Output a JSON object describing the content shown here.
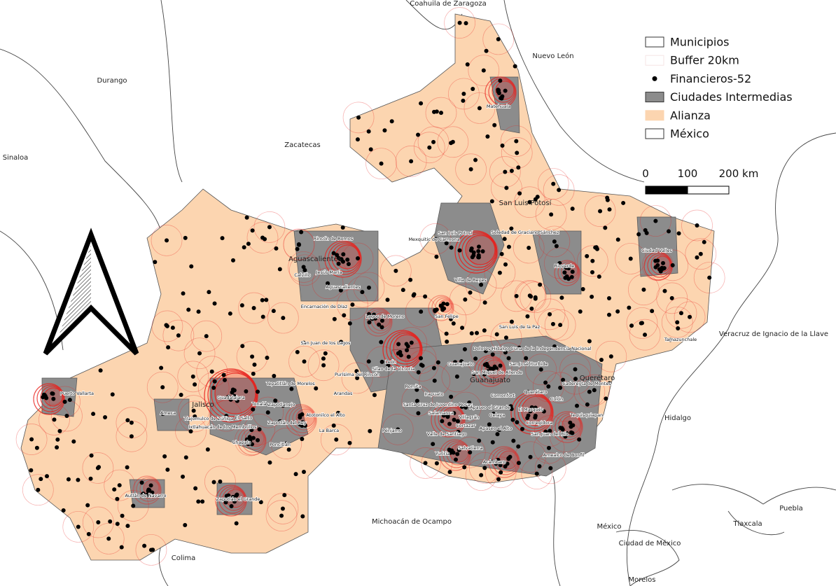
{
  "legend": [
    {
      "label": "Municipios"
    },
    {
      "label": "Buffer 20km"
    },
    {
      "label": "Financieros-52"
    },
    {
      "label": "Ciudades Intermedias"
    },
    {
      "label": "Alianza"
    },
    {
      "label": "México"
    }
  ],
  "scale_bar": {
    "labels": [
      "0",
      "100",
      "200 km"
    ]
  },
  "state_labels": [
    "Coahuila de Zaragoza",
    "Nuevo León",
    "Durango",
    "Zacatecas",
    "Sinaloa",
    "San Luis Potosí",
    "Aguascalientes",
    "Jalisco",
    "Guanajuato",
    "Querétaro",
    "Veracruz de Ignacio de la Llave",
    "Hidalgo",
    "Michoacán de Ocampo",
    "México",
    "Ciudad de México",
    "Puebla",
    "Tlaxcala",
    "Colima",
    "Morelos"
  ],
  "city_labels": [
    "Matehuala",
    "Ciudad Valles",
    "San Luis Potosí",
    "Soledad de Graciano Sánchez",
    "Mexquitic de Carmona",
    "Rioverde",
    "Villa de Reyes",
    "Rincón de Romos",
    "Calvillo",
    "Jesús María",
    "Aguascalientes",
    "Encarnación de Díaz",
    "Lagos de Moreno",
    "San Felipe",
    "San Luis de la Paz",
    "Tamazunchale",
    "San Juan de los Lagos",
    "Dolores Hidalgo Cuna de la Independencia Nacional",
    "León",
    "Silao de la Victoria",
    "Guanajuato",
    "San José Iturbide",
    "Tepatitlán de Morelos",
    "Purísima del Rincón",
    "Romita",
    "San Miguel de Allende",
    "Cadereyta de Montes",
    "Guadalajara",
    "Tonalá",
    "Zapotlanejo",
    "Puerto Vallarta",
    "Ameca",
    "Tlajomulco de Zúñiga",
    "El Salto",
    "Ixtlahuacán de los Membrillos",
    "Zapotlán del Rey",
    "Atotonilco el Alto",
    "Arandas",
    "Irapuato",
    "Santa Cruz de Juventino Rosas",
    "Salamanca",
    "Apaseo el Grande",
    "Comonfort",
    "Querétaro",
    "El Marqués",
    "Colón",
    "Tequisquiapan",
    "Chapala",
    "Poncitlán",
    "La Barca",
    "Pénjamo",
    "Valle de Santiago",
    "Cortazar",
    "Celaya",
    "Corregidora",
    "San Juan del Río",
    "Villagrán",
    "Apaseo el Alto",
    "Salvatierra",
    "Yuriria",
    "Acámbaro",
    "Amealco de Bonfil",
    "Autlán de Navarro",
    "Zapotlán el Grande"
  ]
}
